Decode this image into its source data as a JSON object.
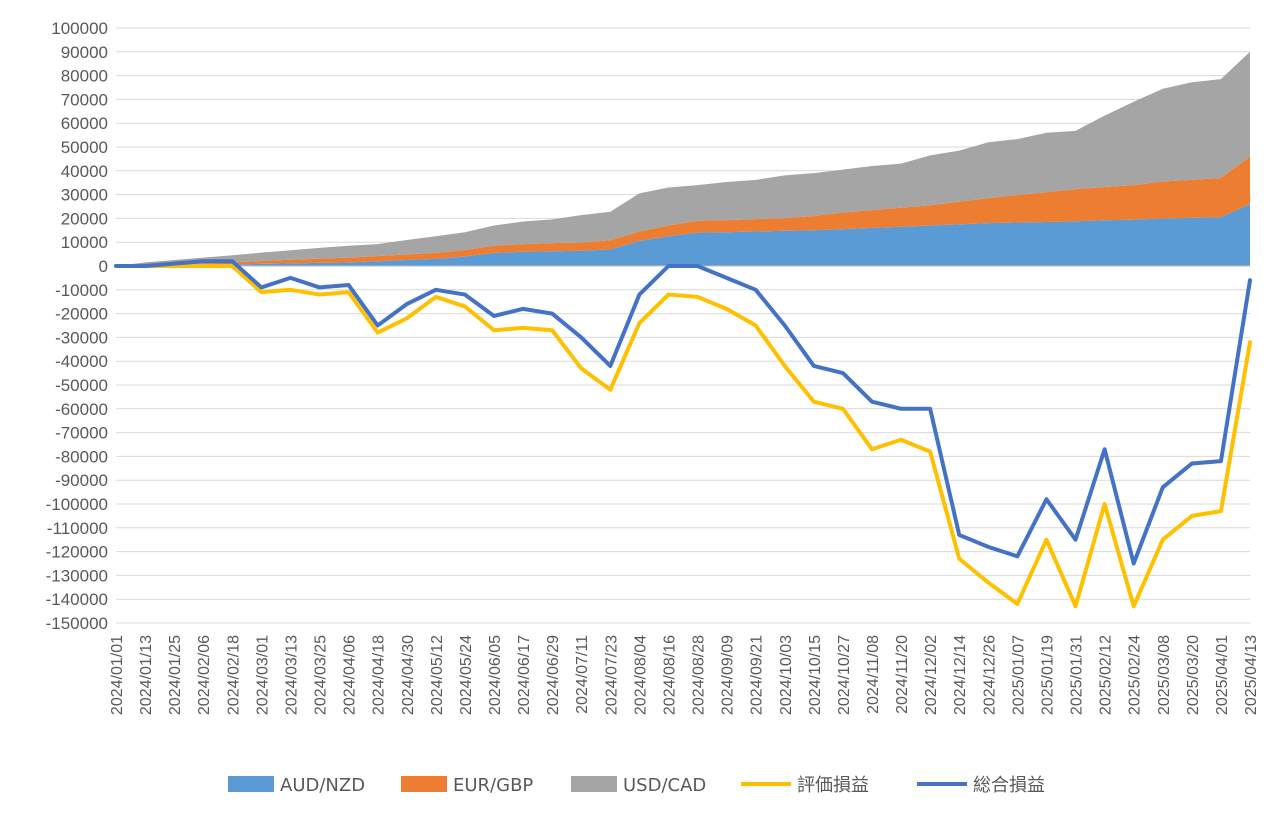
{
  "chart_data": {
    "type": "area",
    "ylim": [
      -150000,
      100000
    ],
    "y_ticks": [
      "100000",
      "90000",
      "80000",
      "70000",
      "60000",
      "50000",
      "40000",
      "30000",
      "20000",
      "10000",
      "0",
      "-10000",
      "-20000",
      "-30000",
      "-40000",
      "-50000",
      "-60000",
      "-70000",
      "-80000",
      "-90000",
      "-100000",
      "-110000",
      "-120000",
      "-130000",
      "-140000",
      "-150000"
    ],
    "x_tick_labels": [
      "2024/01/01",
      "2024/01/13",
      "2024/01/25",
      "2024/02/06",
      "2024/02/18",
      "2024/03/01",
      "2024/03/13",
      "2024/03/25",
      "2024/04/06",
      "2024/04/18",
      "2024/04/30",
      "2024/05/12",
      "2024/05/24",
      "2024/06/05",
      "2024/06/17",
      "2024/06/29",
      "2024/07/11",
      "2024/07/23",
      "2024/08/04",
      "2024/08/16",
      "2024/08/28",
      "2024/09/09",
      "2024/09/21",
      "2024/10/03",
      "2024/10/15",
      "2024/10/27",
      "2024/11/08",
      "2024/11/20",
      "2024/12/02",
      "2024/12/14",
      "2024/12/26",
      "2025/01/07",
      "2025/01/19",
      "2025/01/31",
      "2025/02/12",
      "2025/02/24",
      "2025/03/08",
      "2025/03/20",
      "2025/04/01",
      "2025/04/13"
    ],
    "x": [
      "2024/01/01",
      "2024/01/13",
      "2024/01/25",
      "2024/02/06",
      "2024/02/18",
      "2024/03/01",
      "2024/03/13",
      "2024/03/25",
      "2024/04/06",
      "2024/04/18",
      "2024/04/30",
      "2024/05/12",
      "2024/05/24",
      "2024/06/05",
      "2024/06/17",
      "2024/06/29",
      "2024/07/11",
      "2024/07/23",
      "2024/08/04",
      "2024/08/16",
      "2024/08/28",
      "2024/09/09",
      "2024/09/21",
      "2024/10/03",
      "2024/10/15",
      "2024/10/27",
      "2024/11/08",
      "2024/11/20",
      "2024/12/02",
      "2024/12/14",
      "2024/12/26",
      "2025/01/07",
      "2025/01/19",
      "2025/01/31",
      "2025/02/12",
      "2025/02/24",
      "2025/03/08",
      "2025/03/20",
      "2025/04/01",
      "2025/04/13"
    ],
    "grid": true,
    "legend_position": "bottom",
    "series": [
      {
        "name": "AUD/NZD",
        "type": "stacked-area",
        "color": "#5B9BD5",
        "values": [
          0,
          0,
          300,
          500,
          700,
          900,
          1100,
          1300,
          1500,
          2000,
          2500,
          3000,
          4000,
          5500,
          6000,
          6200,
          6400,
          7000,
          10500,
          12500,
          14000,
          14200,
          14500,
          14800,
          15000,
          15500,
          16000,
          16500,
          17000,
          17500,
          18000,
          18300,
          18500,
          18800,
          19200,
          19500,
          20000,
          20200,
          20500,
          26000
        ]
      },
      {
        "name": "EUR/GBP",
        "type": "stacked-area",
        "color": "#ED7D31",
        "values": [
          0,
          0,
          200,
          500,
          800,
          1200,
          1500,
          1800,
          2000,
          2200,
          2400,
          2500,
          2700,
          3000,
          3200,
          3400,
          3500,
          3800,
          4000,
          4500,
          5000,
          5100,
          5200,
          5300,
          6000,
          7000,
          7500,
          8000,
          8500,
          9500,
          10500,
          11500,
          12500,
          13500,
          14000,
          14500,
          15500,
          16000,
          16500,
          20000
        ]
      },
      {
        "name": "USD/CAD",
        "type": "stacked-area",
        "color": "#A5A5A5",
        "values": [
          0,
          1500,
          2000,
          2500,
          3000,
          3500,
          4000,
          4500,
          5000,
          5000,
          6000,
          7000,
          7500,
          8500,
          9500,
          10000,
          11500,
          12000,
          16000,
          16000,
          15000,
          16000,
          16500,
          18000,
          18000,
          18000,
          18500,
          18500,
          21000,
          21500,
          23500,
          23500,
          25000,
          24500,
          30000,
          35000,
          39000,
          41000,
          41500,
          44000
        ]
      },
      {
        "name": "評価損益",
        "type": "line",
        "color": "#FFC000",
        "values": [
          0,
          0,
          0,
          0,
          0,
          -11000,
          -10000,
          -12000,
          -11000,
          -28000,
          -22000,
          -13000,
          -17000,
          -27000,
          -26000,
          -27000,
          -43000,
          -52000,
          -24000,
          -12000,
          -13000,
          -18000,
          -25000,
          -42000,
          -57000,
          -60000,
          -77000,
          -73000,
          -78000,
          -123000,
          -133000,
          -142000,
          -115000,
          -143000,
          -100000,
          -143000,
          -115000,
          -105000,
          -103000,
          -32000
        ]
      },
      {
        "name": "総合損益",
        "type": "line",
        "color": "#4472C4",
        "values": [
          0,
          0,
          1000,
          2000,
          2000,
          -9000,
          -5000,
          -9000,
          -8000,
          -25000,
          -16000,
          -10000,
          -12000,
          -21000,
          -18000,
          -20000,
          -30000,
          -42000,
          -12000,
          0,
          0,
          -5000,
          -10000,
          -25000,
          -42000,
          -45000,
          -57000,
          -60000,
          -60000,
          -113000,
          -118000,
          -122000,
          -98000,
          -115000,
          -77000,
          -125000,
          -93000,
          -83000,
          -82000,
          -6000
        ]
      }
    ]
  }
}
